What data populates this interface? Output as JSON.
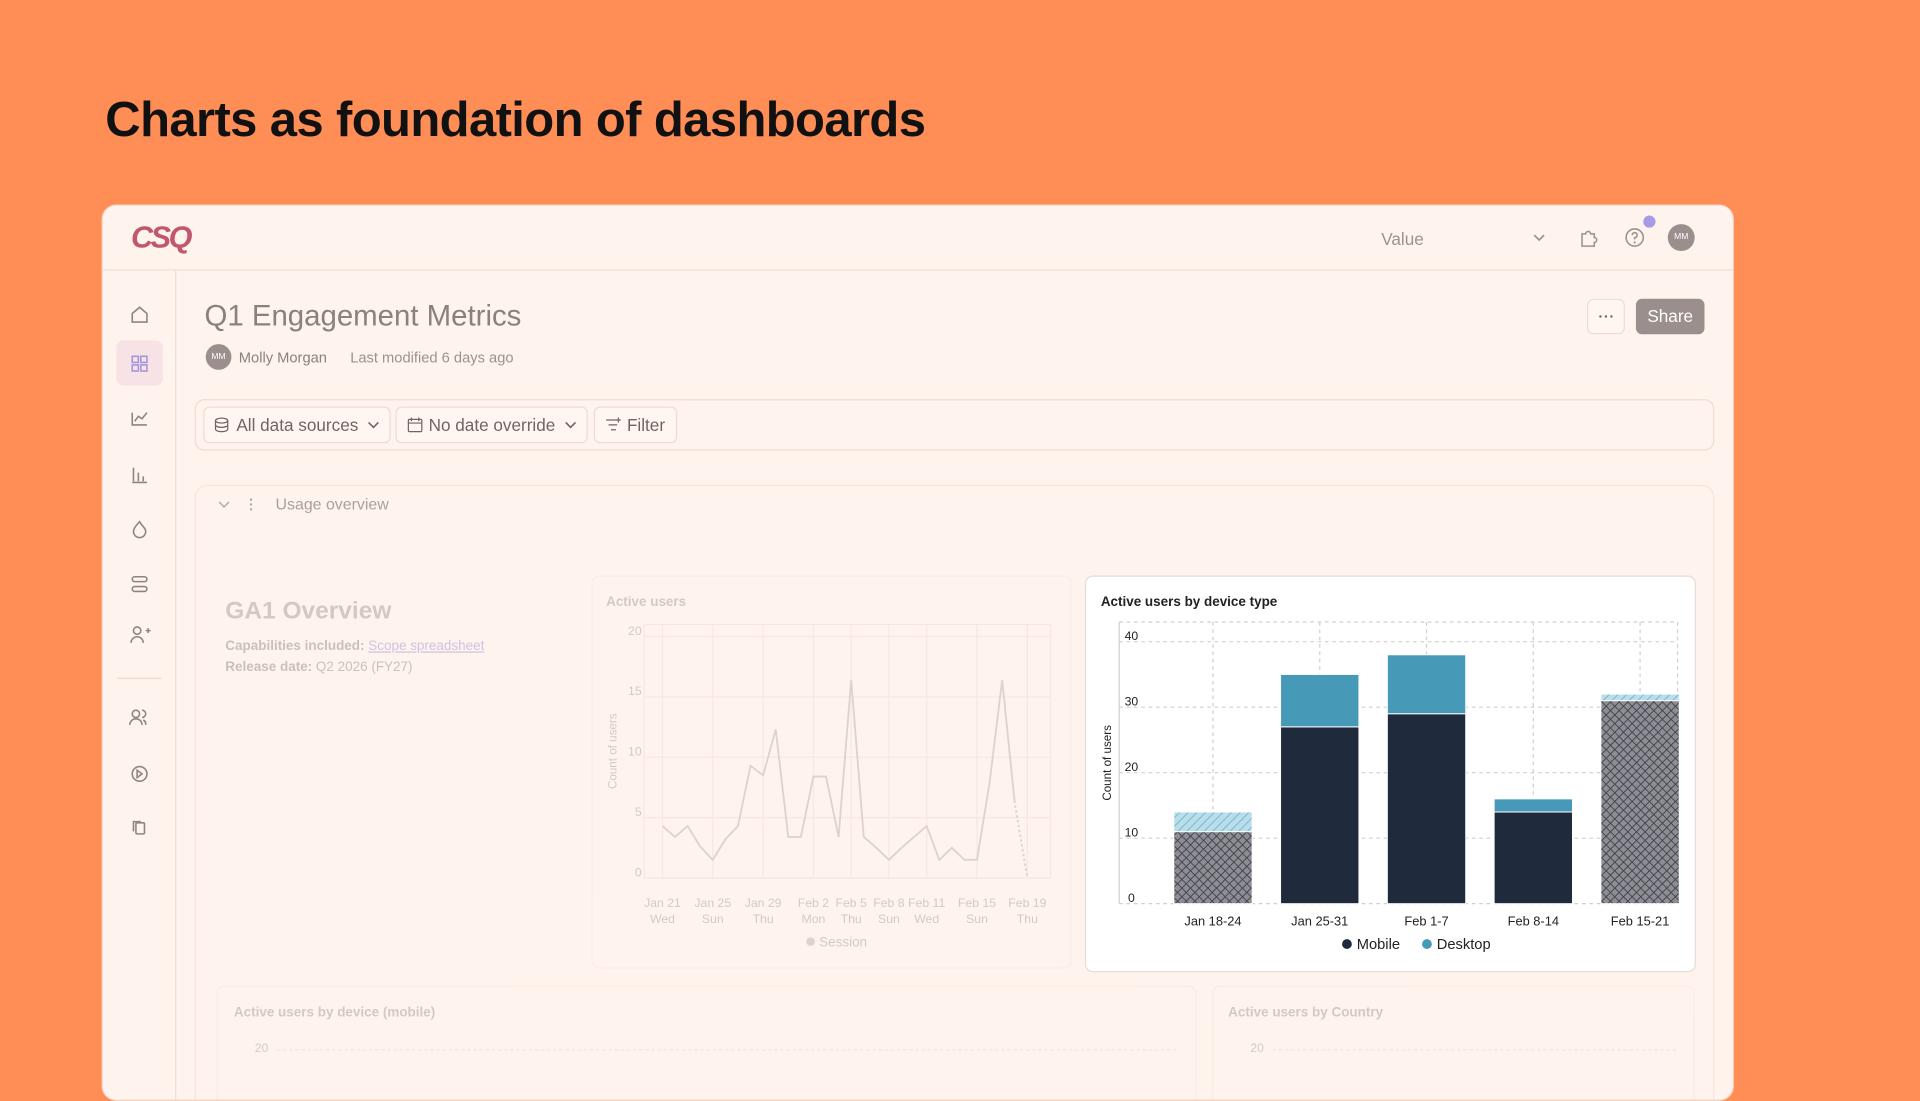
{
  "header": {
    "title": "Charts as foundation of dashboards"
  },
  "app": {
    "logo": "CSQ",
    "selector": "Value",
    "avatar": "MM"
  },
  "dashboard": {
    "title": "Q1 Engagement Metrics",
    "author_initials": "MM",
    "author": "Molly Morgan",
    "modified": "Last modified 6 days ago",
    "share": "Share"
  },
  "filters": [
    "All data sources",
    "No date override",
    "Filter"
  ],
  "section": {
    "title": "Usage overview"
  },
  "overview": {
    "title": "GA1 Overview",
    "capabilities_label": "Capabilities included:",
    "capabilities_link": "Scope spreadsheet",
    "release_label": "Release date:",
    "release_value": "Q2 2026 (FY27)"
  },
  "chart_data": [
    {
      "type": "line",
      "title": "Active users",
      "y_label": "Count of users",
      "categories": [
        "Jan 21",
        null,
        null,
        null,
        "Jan 25",
        null,
        null,
        null,
        "Jan 29",
        null,
        null,
        null,
        "Feb 2",
        null,
        null,
        "Feb 5",
        null,
        null,
        "Feb 8",
        null,
        null,
        "Feb 11",
        null,
        null,
        null,
        "Feb 15",
        null,
        null,
        null,
        "Feb 19"
      ],
      "weekdays": [
        "Wed",
        null,
        null,
        null,
        "Sun",
        null,
        null,
        null,
        "Thu",
        null,
        null,
        null,
        "Mon",
        null,
        null,
        "Thu",
        null,
        null,
        "Sun",
        null,
        null,
        "Wed",
        null,
        null,
        null,
        "Sun",
        null,
        null,
        null,
        "Thu"
      ],
      "series": [
        {
          "name": "Session",
          "color": "#9c8f8b",
          "values": [
            4.3,
            3.4,
            4.3,
            2.6,
            1.5,
            3.2,
            4.3,
            9.3,
            8.5,
            12.3,
            3.4,
            3.4,
            8.4,
            8.4,
            3.4,
            16.4,
            3.4,
            2.5,
            1.5,
            2.5,
            3.4,
            4.3,
            1.5,
            2.5,
            1.5,
            1.5,
            7.9,
            16.4,
            6.2,
            0
          ]
        }
      ],
      "dashed_last_segment": true,
      "ylim": [
        0,
        21
      ],
      "yticks": [
        0,
        5,
        10,
        15,
        20
      ],
      "grid": true
    },
    {
      "type": "bar",
      "stacked": true,
      "title": "Active users by device type",
      "y_label": "Count of users",
      "categories": [
        "Jan 18-24",
        "Jan 25-31",
        "Feb 1-7",
        "Feb 8-14",
        "Feb 15-21"
      ],
      "partial": [
        true,
        false,
        false,
        false,
        true
      ],
      "series": [
        {
          "name": "Mobile",
          "color": "#1f2a3c",
          "values": [
            11,
            27,
            29,
            14,
            31
          ]
        },
        {
          "name": "Desktop",
          "color": "#4799b8",
          "values": [
            3,
            8,
            9,
            2,
            1
          ]
        }
      ],
      "ylim": [
        0,
        43
      ],
      "yticks": [
        0,
        10,
        20,
        30,
        40
      ],
      "grid": true
    }
  ],
  "bottom_panels": [
    {
      "title": "Active users by device (mobile)",
      "tick": 20
    },
    {
      "title": "Active users by Country",
      "tick": 20
    }
  ]
}
